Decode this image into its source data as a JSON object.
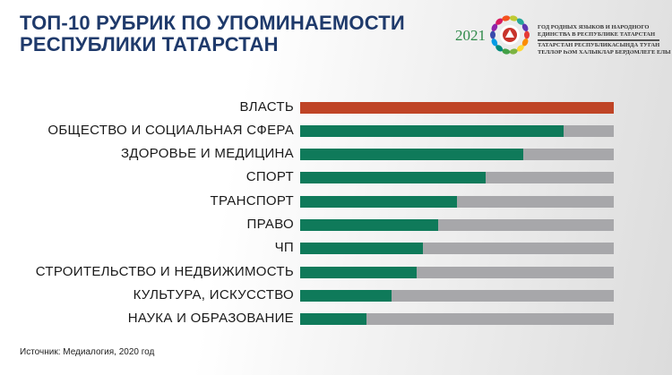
{
  "header": {
    "title_line1": "ТОП-10 РУБРИК ПО УПОМИНАЕМОСТИ",
    "title_line2": "РЕСПУБЛИКИ ТАТАРСТАН"
  },
  "logo": {
    "year": "2021",
    "text_ru": "ГОД РОДНЫХ ЯЗЫКОВ И НАРОДНОГО ЕДИНСТВА В РЕСПУБЛИКЕ ТАТАРСТАН",
    "text_tt": "ТАТАРСТАН РЕСПУБЛИКАСЫНДА ТУГАН ТЕЛЛӘР ҺӘМ ХАЛЫКЛАР БЕРДӘМЛЕГЕ ЕЛЫ"
  },
  "chart_data": {
    "type": "bar",
    "orientation": "horizontal",
    "title": "ТОП-10 РУБРИК ПО УПОМИНАЕМОСТИ РЕСПУБЛИКИ ТАТАРСТАН",
    "categories": [
      "ВЛАСТЬ",
      "ОБЩЕСТВО И СОЦИАЛЬНАЯ СФЕРА",
      "ЗДОРОВЬЕ И МЕДИЦИНА",
      "СПОРТ",
      "ТРАНСПОРТ",
      "ПРАВО",
      "ЧП",
      "СТРОИТЕЛЬСТВО И НЕДВИЖИМОСТЬ",
      "КУЛЬТУРА, ИСКУССТВО",
      "НАУКА И ОБРАЗОВАНИЕ"
    ],
    "values": [
      100,
      84,
      71,
      59,
      50,
      44,
      39,
      37,
      29,
      21
    ],
    "xlim": [
      0,
      100
    ],
    "axis_labels_shown": false,
    "grid": false,
    "colors": {
      "top": "#bf4426",
      "bar": "#0f7a5a",
      "track": "#a7a7aa"
    }
  },
  "footer": {
    "source": "Источник: Медиалогия, 2020 год"
  }
}
